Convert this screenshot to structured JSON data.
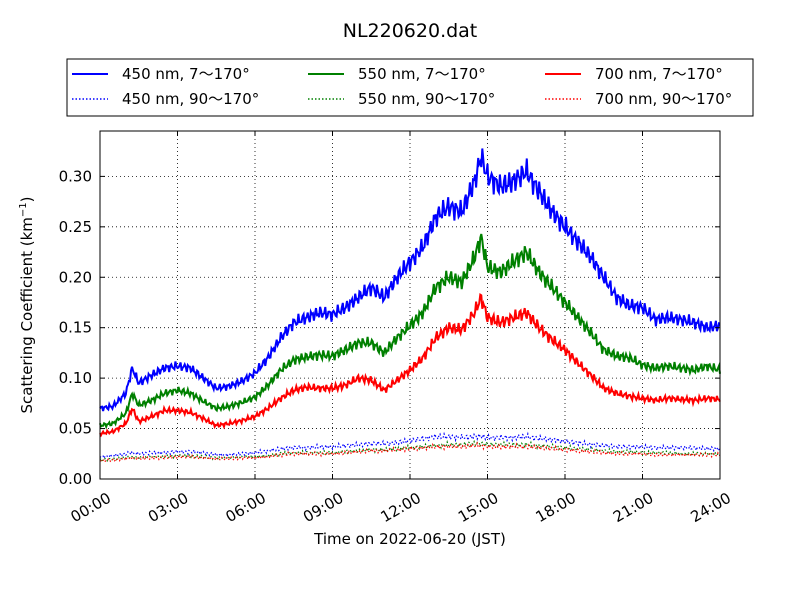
{
  "chart_data": {
    "type": "line",
    "title": "NL220620.dat",
    "xlabel": "Time on 2022-06-20 (JST)",
    "ylabel": "Scattering Coefficient (km",
    "ylabel_sup": "−1",
    "ylabel_end": ")",
    "xlim": [
      "00:00",
      "24:00"
    ],
    "ylim": [
      0.0,
      0.345
    ],
    "x_ticks": [
      "00:00",
      "03:00",
      "06:00",
      "09:00",
      "12:00",
      "15:00",
      "18:00",
      "21:00",
      "24:00"
    ],
    "y_ticks": [
      "0.00",
      "0.05",
      "0.10",
      "0.15",
      "0.20",
      "0.25",
      "0.30"
    ],
    "grid": true,
    "legend_position": "top, above plot, 3 columns",
    "x_hours": [
      0,
      0.5,
      1,
      1.25,
      1.5,
      2,
      2.5,
      3,
      3.5,
      4,
      4.5,
      5,
      5.5,
      6,
      6.5,
      7,
      7.5,
      8,
      8.5,
      9,
      9.5,
      10,
      10.5,
      11,
      11.5,
      12,
      12.5,
      13,
      13.5,
      14,
      14.5,
      14.75,
      15,
      15.5,
      16,
      16.5,
      17,
      17.5,
      18,
      18.5,
      19,
      19.5,
      20,
      20.5,
      21,
      21.5,
      22,
      22.5,
      23,
      23.5,
      24
    ],
    "series": [
      {
        "name": "450 nm, 7～170°",
        "style": "solid",
        "color": "#0000ff",
        "values": [
          0.07,
          0.072,
          0.085,
          0.11,
          0.095,
          0.103,
          0.11,
          0.112,
          0.11,
          0.1,
          0.09,
          0.092,
          0.097,
          0.105,
          0.12,
          0.14,
          0.155,
          0.16,
          0.165,
          0.163,
          0.17,
          0.18,
          0.19,
          0.18,
          0.2,
          0.215,
          0.23,
          0.26,
          0.27,
          0.265,
          0.295,
          0.32,
          0.3,
          0.29,
          0.295,
          0.305,
          0.285,
          0.265,
          0.25,
          0.235,
          0.22,
          0.2,
          0.18,
          0.172,
          0.17,
          0.158,
          0.16,
          0.158,
          0.155,
          0.15,
          0.152
        ]
      },
      {
        "name": "550 nm, 7～170°",
        "style": "solid",
        "color": "#008000",
        "values": [
          0.053,
          0.055,
          0.065,
          0.085,
          0.073,
          0.078,
          0.085,
          0.088,
          0.085,
          0.077,
          0.07,
          0.072,
          0.076,
          0.081,
          0.093,
          0.108,
          0.118,
          0.121,
          0.123,
          0.122,
          0.128,
          0.135,
          0.135,
          0.125,
          0.14,
          0.152,
          0.165,
          0.19,
          0.2,
          0.195,
          0.22,
          0.24,
          0.21,
          0.205,
          0.215,
          0.225,
          0.205,
          0.19,
          0.175,
          0.16,
          0.145,
          0.128,
          0.122,
          0.12,
          0.113,
          0.11,
          0.112,
          0.11,
          0.108,
          0.112,
          0.108
        ]
      },
      {
        "name": "700 nm, 7～170°",
        "style": "solid",
        "color": "#ff0000",
        "values": [
          0.045,
          0.047,
          0.055,
          0.07,
          0.057,
          0.062,
          0.068,
          0.068,
          0.066,
          0.06,
          0.053,
          0.055,
          0.058,
          0.062,
          0.07,
          0.08,
          0.088,
          0.091,
          0.09,
          0.09,
          0.093,
          0.1,
          0.098,
          0.088,
          0.098,
          0.108,
          0.12,
          0.14,
          0.15,
          0.148,
          0.165,
          0.18,
          0.16,
          0.155,
          0.16,
          0.165,
          0.15,
          0.138,
          0.128,
          0.115,
          0.103,
          0.09,
          0.085,
          0.082,
          0.08,
          0.078,
          0.08,
          0.079,
          0.078,
          0.08,
          0.079
        ]
      },
      {
        "name": "450 nm, 90～170°",
        "style": "dotted",
        "color": "#0000ff",
        "values": [
          0.022,
          0.023,
          0.025,
          0.026,
          0.025,
          0.026,
          0.026,
          0.027,
          0.027,
          0.026,
          0.024,
          0.024,
          0.025,
          0.026,
          0.028,
          0.03,
          0.031,
          0.031,
          0.032,
          0.032,
          0.033,
          0.034,
          0.035,
          0.035,
          0.036,
          0.038,
          0.04,
          0.042,
          0.042,
          0.041,
          0.042,
          0.042,
          0.041,
          0.041,
          0.041,
          0.042,
          0.04,
          0.039,
          0.037,
          0.036,
          0.034,
          0.033,
          0.032,
          0.032,
          0.032,
          0.031,
          0.031,
          0.031,
          0.031,
          0.03,
          0.03
        ]
      },
      {
        "name": "550 nm, 90～170°",
        "style": "dotted",
        "color": "#008000",
        "values": [
          0.019,
          0.02,
          0.021,
          0.022,
          0.021,
          0.022,
          0.022,
          0.023,
          0.023,
          0.022,
          0.021,
          0.021,
          0.022,
          0.022,
          0.023,
          0.025,
          0.026,
          0.026,
          0.026,
          0.026,
          0.027,
          0.028,
          0.029,
          0.029,
          0.03,
          0.031,
          0.032,
          0.033,
          0.034,
          0.034,
          0.035,
          0.035,
          0.034,
          0.034,
          0.034,
          0.034,
          0.033,
          0.032,
          0.031,
          0.03,
          0.029,
          0.028,
          0.027,
          0.027,
          0.026,
          0.026,
          0.026,
          0.025,
          0.025,
          0.025,
          0.025
        ]
      },
      {
        "name": "700 nm, 90～170°",
        "style": "dotted",
        "color": "#ff0000",
        "values": [
          0.018,
          0.019,
          0.02,
          0.021,
          0.02,
          0.021,
          0.021,
          0.022,
          0.022,
          0.021,
          0.02,
          0.02,
          0.021,
          0.021,
          0.022,
          0.024,
          0.025,
          0.025,
          0.025,
          0.025,
          0.026,
          0.027,
          0.028,
          0.028,
          0.029,
          0.03,
          0.031,
          0.032,
          0.032,
          0.032,
          0.033,
          0.033,
          0.032,
          0.032,
          0.032,
          0.032,
          0.031,
          0.03,
          0.029,
          0.028,
          0.027,
          0.026,
          0.025,
          0.025,
          0.025,
          0.024,
          0.024,
          0.024,
          0.024,
          0.024,
          0.024
        ]
      }
    ]
  }
}
